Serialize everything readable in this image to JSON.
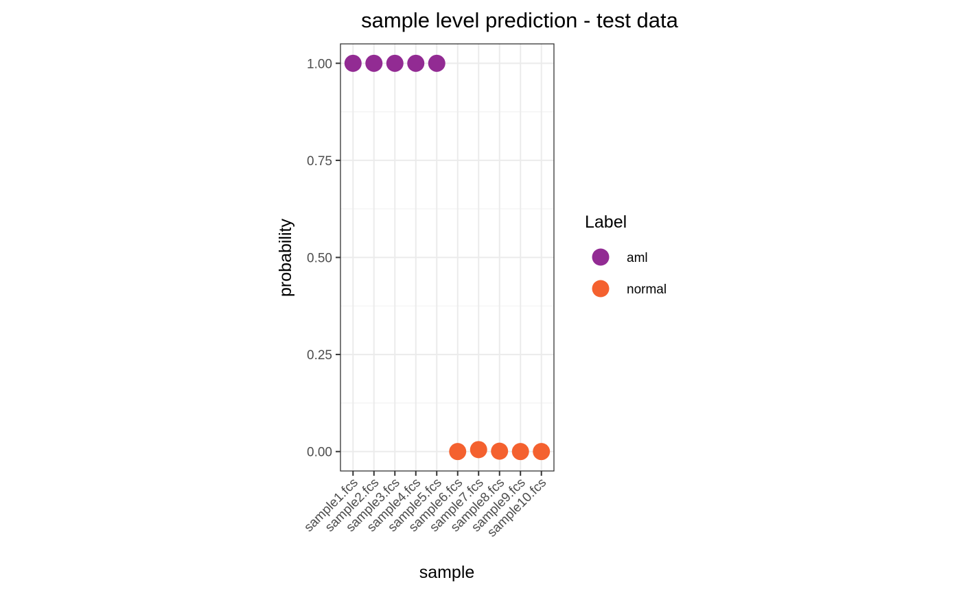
{
  "chart_data": {
    "type": "scatter",
    "title": "sample level prediction - test data",
    "xlabel": "sample",
    "ylabel": "probability",
    "categories": [
      "sample1.fcs",
      "sample2.fcs",
      "sample3.fcs",
      "sample4.fcs",
      "sample5.fcs",
      "sample6.fcs",
      "sample7.fcs",
      "sample8.fcs",
      "sample9.fcs",
      "sample10.fcs"
    ],
    "values": [
      1.0,
      1.0,
      1.0,
      1.0,
      1.0,
      0.0,
      0.005,
      0.001,
      0.0,
      0.0
    ],
    "labels": [
      "aml",
      "aml",
      "aml",
      "aml",
      "aml",
      "normal",
      "normal",
      "normal",
      "normal",
      "normal"
    ],
    "ylim": [
      -0.05,
      1.05
    ],
    "yticks": [
      "0.00",
      "0.25",
      "0.50",
      "0.75",
      "1.00"
    ],
    "grid": true,
    "legend": {
      "title": "Label",
      "placement": "right",
      "entries": [
        {
          "name": "aml",
          "color": "#922B93"
        },
        {
          "name": "normal",
          "color": "#F4612F"
        }
      ]
    }
  }
}
